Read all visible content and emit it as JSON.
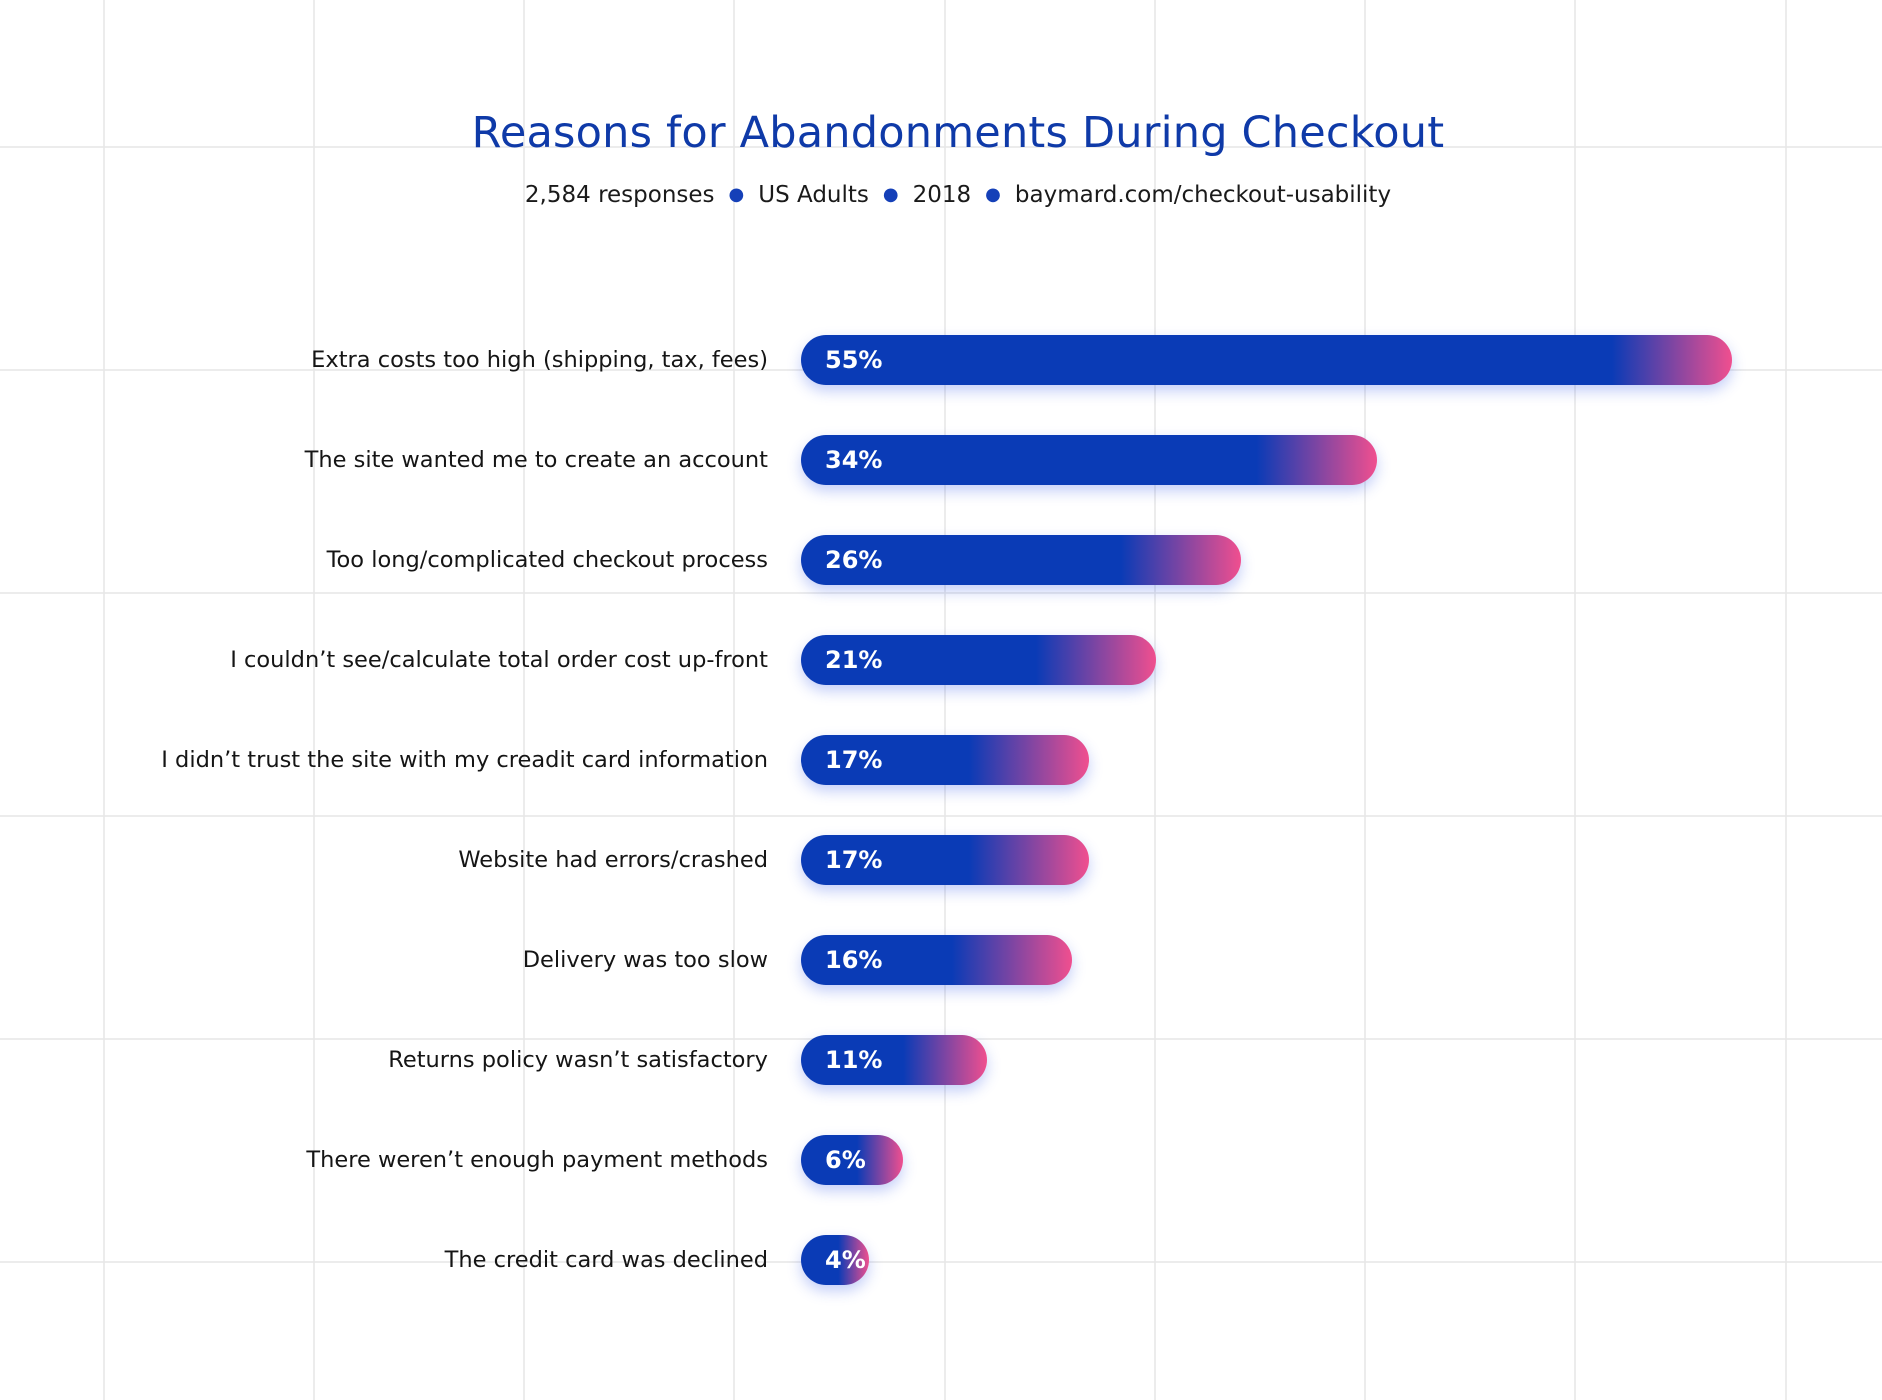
{
  "chart_data": {
    "type": "bar",
    "orientation": "horizontal",
    "title": "Reasons for Abandonments During Checkout",
    "subtitle_parts": [
      "2,584 responses",
      "US Adults",
      "2018",
      "baymard.com/checkout-usability"
    ],
    "categories": [
      "Extra costs too high (shipping, tax, fees)",
      "The site wanted me to create an account",
      "Too long/complicated checkout process",
      "I couldn’t see/calculate total order cost up-front",
      "I didn’t trust the site with my creadit card information",
      "Website had errors/crashed",
      "Delivery was too slow",
      "Returns policy wasn’t satisfactory",
      "There weren’t enough payment methods",
      "The credit card was declined"
    ],
    "values": [
      55,
      34,
      26,
      21,
      17,
      17,
      16,
      11,
      6,
      4
    ],
    "value_labels": [
      "55%",
      "34%",
      "26%",
      "21%",
      "17%",
      "17%",
      "16%",
      "11%",
      "6%",
      "4%"
    ],
    "unit": "%",
    "xlim": [
      0,
      55
    ],
    "grid": true,
    "legend": "none"
  },
  "colors": {
    "title": "#0f3aa8",
    "bar": "#0a3bb6",
    "bar_end": "#f04f8f",
    "subtitle_separator": "#1540b8",
    "grid": "#e6e6e6"
  },
  "icons": {
    "subtitle_separator": "bullet-dot-icon"
  }
}
